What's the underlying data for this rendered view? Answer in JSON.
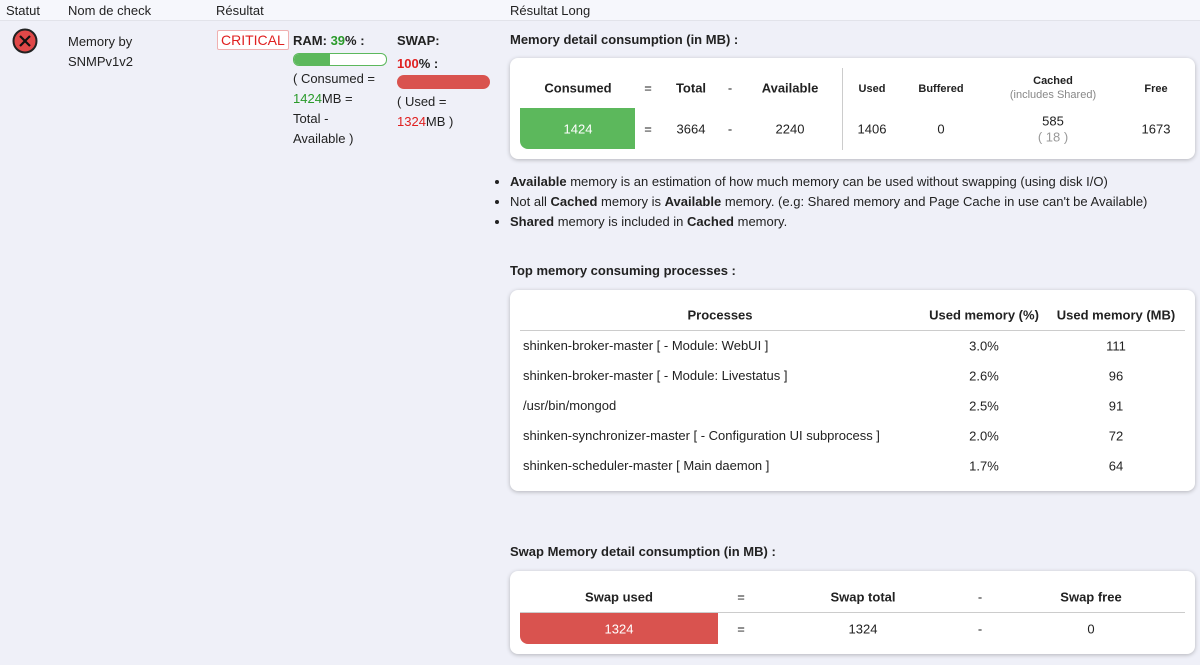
{
  "header": {
    "status": "Statut",
    "check_name": "Nom de check",
    "result": "Résultat",
    "long_result": "Résultat Long"
  },
  "check": {
    "name": "Memory by SNMPv1v2",
    "state": "CRITICAL",
    "ram": {
      "label": "RAM:",
      "percent": 39,
      "unit": "%",
      "colon": ":",
      "line1": "( Consumed =",
      "consumed": 1424,
      "line2": "MB =",
      "line3": "Total -",
      "line4": "Available )"
    },
    "swap": {
      "label": "SWAP:",
      "percent": 100,
      "unit": "%",
      "colon": ":",
      "line1": "( Used =",
      "used": 1324,
      "line2": "MB )"
    }
  },
  "memory_detail": {
    "title": "Memory detail consumption (in MB) :",
    "headers": [
      "Consumed",
      "=",
      "Total",
      "-",
      "Available",
      "Used",
      "Buffered",
      "Cached",
      "Free"
    ],
    "cached_note": "(includes Shared)",
    "values": [
      1424,
      "=",
      3664,
      "-",
      2240,
      1406,
      0,
      585,
      1673
    ],
    "shared": "( 18 )"
  },
  "bullets": [
    [
      "Available",
      " memory is an estimation of how much memory can be used without swapping (using disk I/O)"
    ],
    [
      "Not all ",
      "Cached",
      " memory is ",
      "Available",
      " memory. (e.g: Shared memory and Page Cache in use can't be Available)"
    ],
    [
      "Shared",
      " memory is included in ",
      "Cached",
      " memory."
    ]
  ],
  "processes": {
    "title": "Top memory consuming processes :",
    "headers": [
      "Processes",
      "Used memory (%)",
      "Used memory (MB)"
    ],
    "rows": [
      [
        "shinken-broker-master [ - Module: WebUI ]",
        "3.0%",
        "111"
      ],
      [
        "shinken-broker-master [ - Module: Livestatus ]",
        "2.6%",
        "96"
      ],
      [
        "/usr/bin/mongod",
        "2.5%",
        "91"
      ],
      [
        "shinken-synchronizer-master [ - Configuration UI subprocess ]",
        "2.0%",
        "72"
      ],
      [
        "shinken-scheduler-master [ Main daemon ]",
        "1.7%",
        "64"
      ]
    ]
  },
  "swap_detail": {
    "title": "Swap Memory detail consumption (in MB) :",
    "headers": [
      "Swap used",
      "=",
      "Swap total",
      "-",
      "Swap free"
    ],
    "values": [
      1324,
      "=",
      1324,
      "-",
      0
    ]
  }
}
